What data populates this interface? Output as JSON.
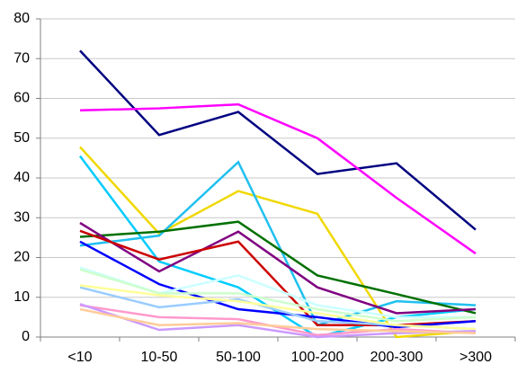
{
  "chart_data": {
    "type": "line",
    "categories": [
      "<10",
      "10-50",
      "50-100",
      "100-200",
      "200-300",
      ">300"
    ],
    "ylim": [
      0,
      80
    ],
    "yticks": [
      0,
      10,
      20,
      30,
      40,
      50,
      60,
      70,
      80
    ],
    "grid": true,
    "series": [
      {
        "color": "#000080",
        "values": [
          72,
          50.8,
          56.6,
          41,
          43.7,
          27
        ]
      },
      {
        "color": "#ff00ff",
        "values": [
          57,
          57.5,
          58.5,
          50,
          35,
          21
        ]
      },
      {
        "color": "#f0d800",
        "values": [
          47.8,
          26,
          36.7,
          31,
          0,
          1.5
        ]
      },
      {
        "color": "#00ccff",
        "values": [
          45.5,
          19,
          12.5,
          0,
          5,
          7
        ]
      },
      {
        "color": "#20c0f0",
        "values": [
          23,
          25.5,
          44,
          3,
          9,
          8
        ]
      },
      {
        "color": "#007000",
        "values": [
          25.2,
          26.5,
          29,
          15.5,
          10.8,
          6
        ]
      },
      {
        "color": "#800080",
        "values": [
          28.7,
          16.5,
          26.5,
          12.5,
          6,
          7
        ]
      },
      {
        "color": "#cc0000",
        "values": [
          26.7,
          19.5,
          24,
          3,
          3,
          4
        ]
      },
      {
        "color": "#0000ff",
        "values": [
          24,
          13.3,
          7,
          5,
          2.5,
          4
        ]
      },
      {
        "color": "#ccffff",
        "values": [
          17.5,
          11,
          15.5,
          8,
          5,
          5
        ]
      },
      {
        "color": "#ccffcc",
        "values": [
          17,
          11,
          11,
          7,
          4,
          5
        ]
      },
      {
        "color": "#99ccff",
        "values": [
          12.5,
          7.5,
          9.5,
          4,
          3,
          2
        ]
      },
      {
        "color": "#ffff99",
        "values": [
          13,
          10.5,
          9,
          6,
          3,
          2
        ]
      },
      {
        "color": "#ff99cc",
        "values": [
          8,
          5,
          4.5,
          0.5,
          2,
          1
        ]
      },
      {
        "color": "#cc99ff",
        "values": [
          8.3,
          1.8,
          3,
          0,
          1,
          1.5
        ]
      },
      {
        "color": "#ffcc99",
        "values": [
          7,
          3,
          3.5,
          2,
          1.5,
          1
        ]
      }
    ]
  }
}
